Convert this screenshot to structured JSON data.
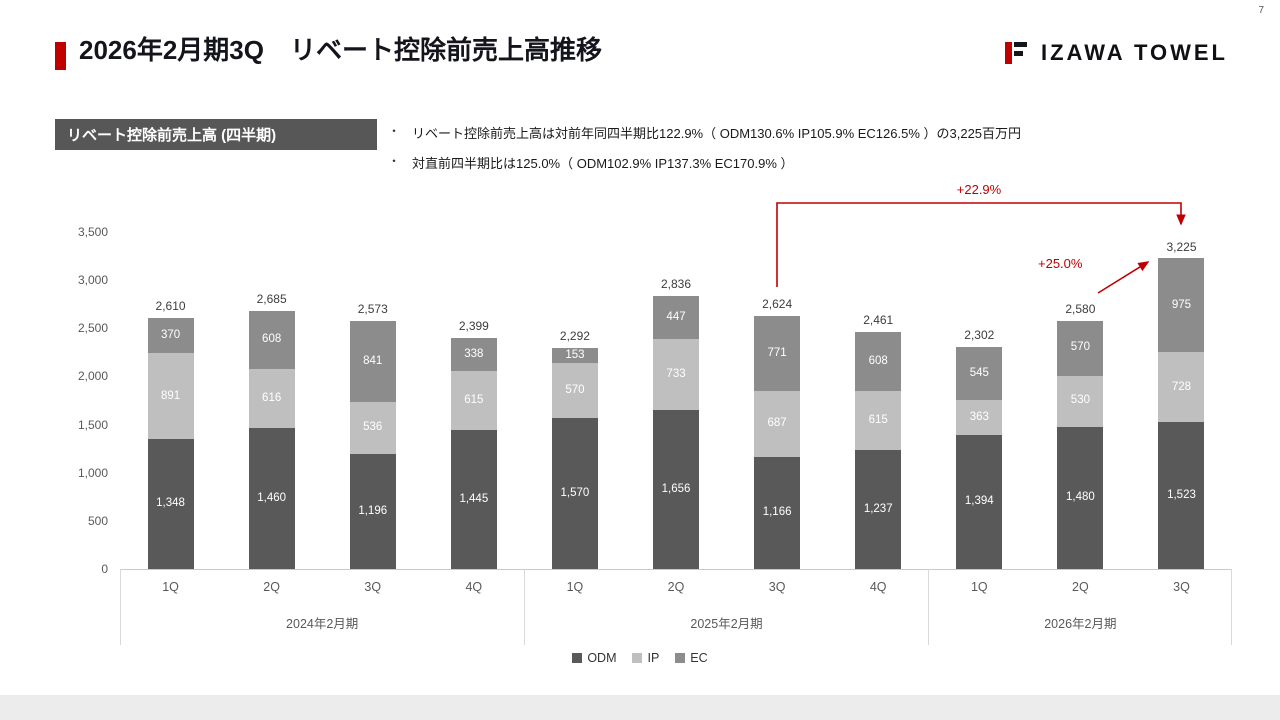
{
  "slide": {
    "title": "2026年2月期3Q　リベート控除前売上高推移",
    "logo_text": "IZAWA TOWEL",
    "page_number": "7",
    "accent_color": "#c00000"
  },
  "section": {
    "label": "リベート控除前売上高 (四半期)",
    "bullet_char": "・",
    "bullets": [
      "リベート控除前売上高は対前年同四半期比122.9%（ ODM130.6% IP105.9% EC126.5% ）の3,225百万円",
      "対直前四半期比は125.0%（ ODM102.9% IP137.3% EC170.9% ）"
    ]
  },
  "annotations": {
    "yoy_growth": "+22.9%",
    "qoq_growth": "+25.0%"
  },
  "chart_data": {
    "type": "bar",
    "stacked": true,
    "title": "リベート控除前売上高 (四半期)",
    "ylabel": "百万円",
    "ylim": [
      0,
      3500
    ],
    "ytick_values": [
      0,
      500,
      1000,
      1500,
      2000,
      2500,
      3000,
      3500
    ],
    "legend": [
      "ODM",
      "IP",
      "EC"
    ],
    "colors": {
      "ODM": "#595959",
      "IP": "#bfbfbf",
      "EC": "#8c8c8c"
    },
    "groups": [
      {
        "label": "2024年2月期",
        "quarters": [
          "1Q",
          "2Q",
          "3Q",
          "4Q"
        ],
        "totals": [
          2610,
          2685,
          2573,
          2399
        ],
        "ODM": [
          1348,
          1460,
          1196,
          1445
        ],
        "IP": [
          891,
          616,
          536,
          615
        ],
        "EC": [
          370,
          608,
          841,
          338
        ]
      },
      {
        "label": "2025年2月期",
        "quarters": [
          "1Q",
          "2Q",
          "3Q",
          "4Q"
        ],
        "totals": [
          2292,
          2836,
          2624,
          2461
        ],
        "ODM": [
          1570,
          1656,
          1166,
          1237
        ],
        "IP": [
          570,
          733,
          687,
          615
        ],
        "EC": [
          153,
          447,
          771,
          608
        ]
      },
      {
        "label": "2026年2月期",
        "quarters": [
          "1Q",
          "2Q",
          "3Q"
        ],
        "totals": [
          2302,
          2580,
          3225
        ],
        "ODM": [
          1394,
          1480,
          1523
        ],
        "IP": [
          363,
          530,
          728
        ],
        "EC": [
          545,
          570,
          975
        ]
      }
    ]
  }
}
